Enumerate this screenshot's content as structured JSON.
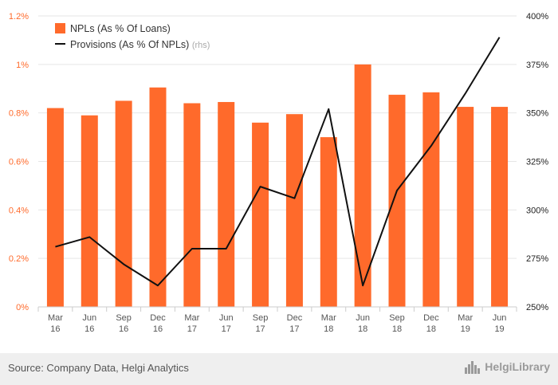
{
  "chart_data": {
    "type": "bar",
    "categories": [
      [
        "Mar",
        "16"
      ],
      [
        "Jun",
        "16"
      ],
      [
        "Sep",
        "16"
      ],
      [
        "Dec",
        "16"
      ],
      [
        "Mar",
        "17"
      ],
      [
        "Jun",
        "17"
      ],
      [
        "Sep",
        "17"
      ],
      [
        "Dec",
        "17"
      ],
      [
        "Mar",
        "18"
      ],
      [
        "Jun",
        "18"
      ],
      [
        "Sep",
        "18"
      ],
      [
        "Dec",
        "18"
      ],
      [
        "Mar",
        "19"
      ],
      [
        "Jun",
        "19"
      ]
    ],
    "series": [
      {
        "name": "NPLs (As % Of Loans)",
        "type": "bar",
        "axis": "left",
        "values": [
          0.82,
          0.79,
          0.85,
          0.905,
          0.84,
          0.845,
          0.76,
          0.795,
          0.7,
          1.0,
          0.875,
          0.885,
          0.825,
          0.825
        ]
      },
      {
        "name": "Provisions (As % Of NPLs)",
        "suffix": "(rhs)",
        "type": "line",
        "axis": "right",
        "values": [
          281,
          286,
          272,
          261,
          280,
          280,
          312,
          306,
          352,
          261,
          310,
          333,
          360,
          389
        ]
      }
    ],
    "y_left": {
      "range": [
        0,
        1.2
      ],
      "ticks": [
        0,
        0.2,
        0.4,
        0.6,
        0.8,
        1.0,
        1.2
      ],
      "tick_labels": [
        "0%",
        "0.2%",
        "0.4%",
        "0.6%",
        "0.8%",
        "1%",
        "1.2%"
      ]
    },
    "y_right": {
      "range": [
        250,
        400
      ],
      "ticks": [
        250,
        275,
        300,
        325,
        350,
        375,
        400
      ],
      "tick_labels": [
        "250%",
        "275%",
        "300%",
        "325%",
        "350%",
        "375%",
        "400%"
      ]
    },
    "grid": true,
    "legend": "top-left"
  },
  "colors": {
    "bar": "#ff6a2b",
    "line": "#111111",
    "left_axis_text": "#ff6a2b",
    "right_axis_text": "#222222",
    "grid": "#e6e6e6",
    "rhs_note": "#aaaaaa"
  },
  "footer": {
    "source": "Source: Company Data, Helgi Analytics",
    "brand": "HelgiLibrary",
    "brand_icon": "city-skyline-icon"
  }
}
